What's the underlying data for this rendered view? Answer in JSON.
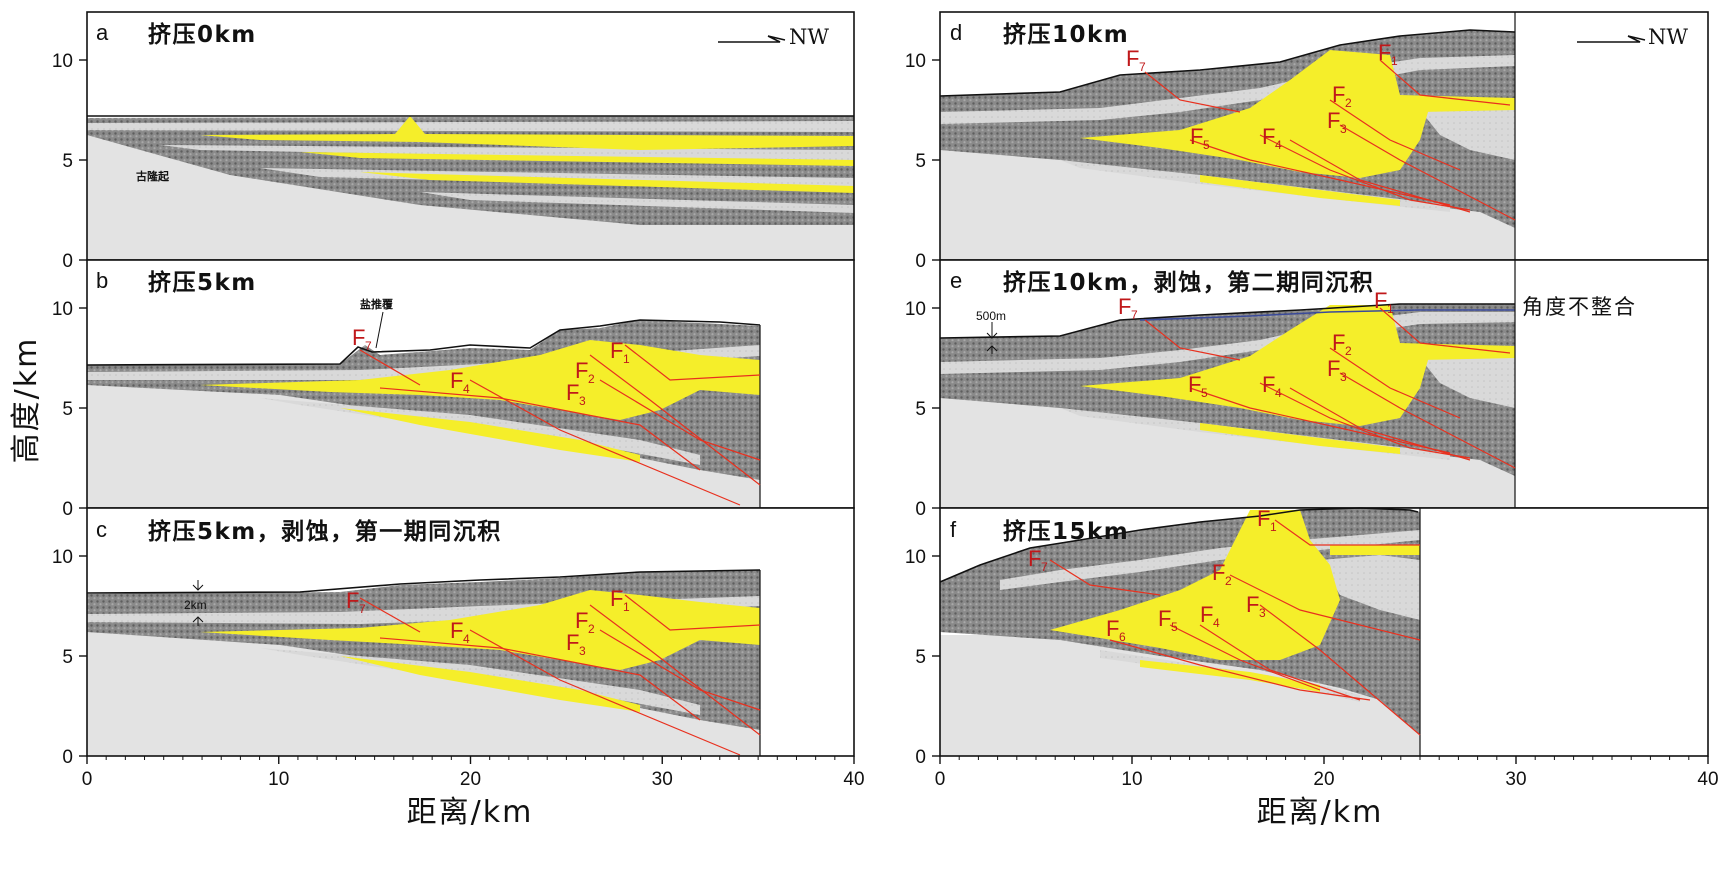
{
  "figure": {
    "y_axis_title": "高度/km",
    "x_axis_title": "距离/km",
    "x_ticks": [
      "0",
      "10",
      "20",
      "30",
      "40"
    ],
    "y_ticks": [
      "0",
      "5",
      "10"
    ],
    "direction_label": "NW",
    "colors": {
      "basement": "#e2e2e2",
      "light_layer": "#d8d8d8",
      "dark_layer": "#7a7a7a",
      "salt": "#f5ee2a",
      "fault": "#e8301e",
      "fault_label": "#c0181a",
      "unconformity": "#3a4a9a"
    }
  },
  "panels": [
    {
      "letter": "a",
      "title": "挤压0km",
      "note": "古隆起",
      "faults": []
    },
    {
      "letter": "b",
      "title": "挤压5km",
      "note": "盐推覆",
      "faults": [
        {
          "label": "F",
          "sub": "7"
        },
        {
          "label": "F",
          "sub": "4"
        },
        {
          "label": "F",
          "sub": "2"
        },
        {
          "label": "F",
          "sub": "3"
        },
        {
          "label": "F",
          "sub": "1"
        }
      ]
    },
    {
      "letter": "c",
      "title": "挤压5km，剥蚀，第一期同沉积",
      "note": "2km",
      "faults": [
        {
          "label": "F",
          "sub": "7"
        },
        {
          "label": "F",
          "sub": "4"
        },
        {
          "label": "F",
          "sub": "2"
        },
        {
          "label": "F",
          "sub": "3"
        },
        {
          "label": "F",
          "sub": "1"
        }
      ]
    },
    {
      "letter": "d",
      "title": "挤压10km",
      "faults": [
        {
          "label": "F",
          "sub": "7"
        },
        {
          "label": "F",
          "sub": "1"
        },
        {
          "label": "F",
          "sub": "2"
        },
        {
          "label": "F",
          "sub": "3"
        },
        {
          "label": "F",
          "sub": "5"
        },
        {
          "label": "F",
          "sub": "4"
        }
      ]
    },
    {
      "letter": "e",
      "title": "挤压10km，剥蚀，第二期同沉积",
      "note": "500m",
      "side_note": "角度不整合",
      "faults": [
        {
          "label": "F",
          "sub": "7"
        },
        {
          "label": "F",
          "sub": "1"
        },
        {
          "label": "F",
          "sub": "2"
        },
        {
          "label": "F",
          "sub": "3"
        },
        {
          "label": "F",
          "sub": "5"
        },
        {
          "label": "F",
          "sub": "4"
        }
      ]
    },
    {
      "letter": "f",
      "title": "挤压15km",
      "faults": [
        {
          "label": "F",
          "sub": "1"
        },
        {
          "label": "F",
          "sub": "7"
        },
        {
          "label": "F",
          "sub": "2"
        },
        {
          "label": "F",
          "sub": "3"
        },
        {
          "label": "F",
          "sub": "6"
        },
        {
          "label": "F",
          "sub": "5"
        },
        {
          "label": "F",
          "sub": "4"
        }
      ]
    }
  ]
}
